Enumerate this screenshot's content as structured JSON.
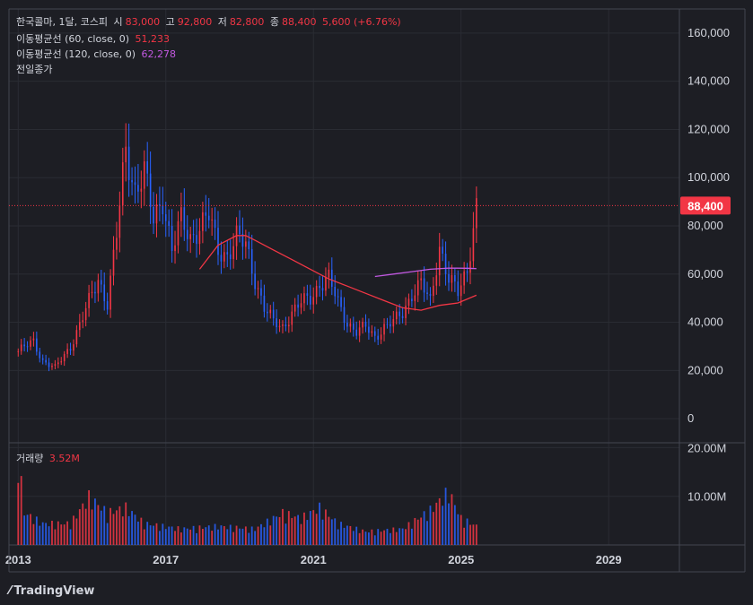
{
  "legend": {
    "symbol": "한국콜마, 1달, 코스피",
    "o_label": "시",
    "o_value": "83,000",
    "h_label": "고",
    "h_value": "92,800",
    "l_label": "저",
    "l_value": "82,800",
    "c_label": "종",
    "c_value": "88,400",
    "change": "5,600 (+6.76%)",
    "ma60_label": "이동평균선 (60, close, 0)",
    "ma60_value": "51,233",
    "ma120_label": "이동평균선 (120, close, 0)",
    "ma120_value": "62,278",
    "prev_close_label": "전일종가",
    "volume_label": "거래량",
    "volume_value": "3.52M"
  },
  "brand": {
    "name": "TradingView"
  },
  "colors": {
    "up": "#f23645",
    "down": "#2962ff",
    "ma60": "#f23645",
    "ma120": "#c158e0",
    "bg": "#1d1e24"
  },
  "chart_data": {
    "type": "candlestick",
    "x_axis": {
      "ticks": [
        "2013",
        "2017",
        "2021",
        "2025",
        "2029"
      ],
      "range": [
        "2012-10",
        "2030-12"
      ]
    },
    "price_axis": {
      "ticks": [
        "160,000",
        "140,000",
        "120,000",
        "100,000",
        "80,000",
        "60,000",
        "40,000",
        "20,000",
        "0"
      ],
      "range": [
        -10000,
        170000
      ]
    },
    "volume_axis": {
      "ticks": [
        "20.00M",
        "10.00M"
      ],
      "range": [
        0,
        21
      ]
    },
    "last_price_label": "88,400",
    "last_price": 88400,
    "price_keypoints": [
      [
        "2013-01",
        28000
      ],
      [
        "2013-06",
        32000
      ],
      [
        "2013-09",
        24000
      ],
      [
        "2014-01",
        21000
      ],
      [
        "2014-06",
        30000
      ],
      [
        "2014-10",
        42000
      ],
      [
        "2015-03",
        58000
      ],
      [
        "2015-06",
        48000
      ],
      [
        "2015-09",
        76000
      ],
      [
        "2015-12",
        112000
      ],
      [
        "2016-03",
        95000
      ],
      [
        "2016-06",
        102000
      ],
      [
        "2016-09",
        82000
      ],
      [
        "2016-12",
        92000
      ],
      [
        "2017-03",
        70000
      ],
      [
        "2017-06",
        82000
      ],
      [
        "2017-09",
        75000
      ],
      [
        "2017-12",
        80000
      ],
      [
        "2018-03",
        84000
      ],
      [
        "2018-06",
        70000
      ],
      [
        "2018-09",
        68000
      ],
      [
        "2018-12",
        75000
      ],
      [
        "2019-03",
        72000
      ],
      [
        "2019-06",
        58000
      ],
      [
        "2019-09",
        46000
      ],
      [
        "2019-12",
        40000
      ],
      [
        "2020-03",
        38000
      ],
      [
        "2020-06",
        44000
      ],
      [
        "2020-09",
        48000
      ],
      [
        "2020-12",
        50000
      ],
      [
        "2021-03",
        56000
      ],
      [
        "2021-06",
        58000
      ],
      [
        "2021-09",
        48000
      ],
      [
        "2021-12",
        40000
      ],
      [
        "2022-03",
        36000
      ],
      [
        "2022-06",
        38000
      ],
      [
        "2022-09",
        34000
      ],
      [
        "2022-12",
        38000
      ],
      [
        "2023-03",
        40000
      ],
      [
        "2023-06",
        44000
      ],
      [
        "2023-09",
        52000
      ],
      [
        "2023-12",
        56000
      ],
      [
        "2024-03",
        48000
      ],
      [
        "2024-06",
        72000
      ],
      [
        "2024-09",
        58000
      ],
      [
        "2024-12",
        52000
      ],
      [
        "2025-03",
        62000
      ],
      [
        "2025-05",
        80000
      ],
      [
        "2025-06",
        88400
      ]
    ],
    "volume_keypoints": [
      [
        "2013-01",
        17.0
      ],
      [
        "2013-03",
        6.0
      ],
      [
        "2013-09",
        4.0
      ],
      [
        "2014-06",
        4.0
      ],
      [
        "2014-12",
        9.0
      ],
      [
        "2015-06",
        6.0
      ],
      [
        "2015-12",
        7.0
      ],
      [
        "2016-06",
        4.0
      ],
      [
        "2017-06",
        3.0
      ],
      [
        "2018-06",
        3.5
      ],
      [
        "2019-06",
        3.0
      ],
      [
        "2020-03",
        6.0
      ],
      [
        "2020-09",
        5.0
      ],
      [
        "2021-03",
        7.0
      ],
      [
        "2021-09",
        4.0
      ],
      [
        "2022-06",
        2.5
      ],
      [
        "2023-06",
        3.0
      ],
      [
        "2024-03",
        6.5
      ],
      [
        "2024-09",
        10.0
      ],
      [
        "2025-01",
        5.0
      ],
      [
        "2025-06",
        3.52
      ]
    ],
    "ma60": [
      [
        "2017-12",
        62000
      ],
      [
        "2018-06",
        72000
      ],
      [
        "2018-12",
        76000
      ],
      [
        "2019-03",
        76000
      ],
      [
        "2019-06",
        74000
      ],
      [
        "2019-12",
        70000
      ],
      [
        "2020-06",
        66000
      ],
      [
        "2020-12",
        62000
      ],
      [
        "2021-06",
        58000
      ],
      [
        "2021-12",
        55000
      ],
      [
        "2022-06",
        52000
      ],
      [
        "2022-12",
        49000
      ],
      [
        "2023-06",
        46000
      ],
      [
        "2023-12",
        45000
      ],
      [
        "2024-06",
        47000
      ],
      [
        "2024-12",
        48000
      ],
      [
        "2025-06",
        51233
      ]
    ],
    "ma120": [
      [
        "2022-09",
        59000
      ],
      [
        "2023-03",
        60000
      ],
      [
        "2023-09",
        61000
      ],
      [
        "2024-03",
        62000
      ],
      [
        "2024-09",
        62500
      ],
      [
        "2025-03",
        62400
      ],
      [
        "2025-06",
        62278
      ]
    ]
  }
}
